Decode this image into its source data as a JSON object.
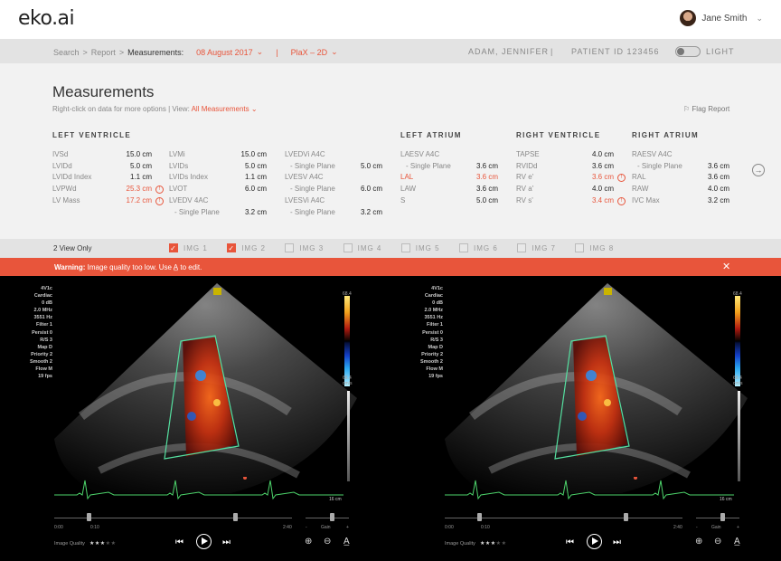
{
  "app": {
    "logo": "eko.ai",
    "user_name": "Jane Smith"
  },
  "nav": {
    "crumb_search": "Search",
    "crumb_report": "Report",
    "crumb_measurements": "Measurements:",
    "date": "08 August 2017",
    "view_mode": "PlaX – 2D",
    "patient_name": "ADAM, JENNIFER",
    "patient_id": "PATIENT ID 123456",
    "theme_label": "LIGHT"
  },
  "measurements": {
    "title": "Measurements",
    "subtitle": "Right-click on data for more options",
    "view_label": "View:",
    "view_value": "All Measurements",
    "flag_report": "Flag Report",
    "left_ventricle": {
      "heading": "LEFT VENTRICLE",
      "col1": [
        {
          "label": "IVSd",
          "value": "15.0 cm"
        },
        {
          "label": "LVIDd",
          "value": "5.0 cm"
        },
        {
          "label": "LVIDd Index",
          "value": "1.1 cm"
        },
        {
          "label": "LVPWd",
          "value": "25.3 cm",
          "alert": true
        },
        {
          "label": "LV Mass",
          "value": "17.2 cm",
          "alert": true
        }
      ],
      "col2": [
        {
          "label": "LVMi",
          "value": "15.0 cm"
        },
        {
          "label": "LVIDs",
          "value": "5.0 cm"
        },
        {
          "label": "LVIDs Index",
          "value": "1.1 cm"
        },
        {
          "label": "LVOT",
          "value": "6.0 cm"
        },
        {
          "label": "LVEDV 4AC",
          "value": ""
        },
        {
          "label": "- Single Plane",
          "value": "3.2 cm"
        }
      ],
      "col3": [
        {
          "label": "LVEDVi A4C",
          "value": ""
        },
        {
          "label": "- Single Plane",
          "value": "5.0 cm"
        },
        {
          "label": "LVESV A4C",
          "value": ""
        },
        {
          "label": "- Single Plane",
          "value": "6.0 cm"
        },
        {
          "label": "LVESVi A4C",
          "value": ""
        },
        {
          "label": "- Single Plane",
          "value": "3.2 cm"
        }
      ]
    },
    "left_atrium": {
      "heading": "LEFT ATRIUM",
      "rows": [
        {
          "label": "LAESV A4C",
          "value": ""
        },
        {
          "label": "- Single Plane",
          "value": "3.6 cm"
        },
        {
          "label": "LAL",
          "value": "3.6 cm",
          "red": true
        },
        {
          "label": "LAW",
          "value": "3.6 cm"
        },
        {
          "label": "S",
          "value": "5.0 cm"
        }
      ]
    },
    "right_ventricle": {
      "heading": "RIGHT VENTRICLE",
      "rows": [
        {
          "label": "TAPSE",
          "value": "4.0 cm"
        },
        {
          "label": "RVIDd",
          "value": "3.6 cm"
        },
        {
          "label": "RV e'",
          "value": "3.6 cm",
          "alert": true
        },
        {
          "label": "RV a'",
          "value": "4.0 cm"
        },
        {
          "label": "RV s'",
          "value": "3.4 cm",
          "alert": true
        }
      ]
    },
    "right_atrium": {
      "heading": "RIGHT ATRIUM",
      "rows": [
        {
          "label": "RAESV A4C",
          "value": ""
        },
        {
          "label": "- Single Plane",
          "value": "3.6 cm"
        },
        {
          "label": "RAL",
          "value": "3.6 cm"
        },
        {
          "label": "RAW",
          "value": "4.0 cm"
        },
        {
          "label": "IVC Max",
          "value": "3.2 cm"
        }
      ]
    }
  },
  "image_bar": {
    "two_view": "2 View Only",
    "images": [
      {
        "label": "IMG 1",
        "checked": true
      },
      {
        "label": "IMG 2",
        "checked": true
      },
      {
        "label": "IMG 3",
        "checked": false
      },
      {
        "label": "IMG 4",
        "checked": false
      },
      {
        "label": "IMG 5",
        "checked": false
      },
      {
        "label": "IMG 6",
        "checked": false
      },
      {
        "label": "IMG 7",
        "checked": false
      },
      {
        "label": "IMG 8",
        "checked": false
      }
    ]
  },
  "warning": {
    "bold": "Warning:",
    "text": "Image quality too low. Use",
    "text_after": "to edit."
  },
  "viewer": {
    "params": [
      "4V1c",
      "Cardiac",
      "0 dB",
      "2.0 MHz",
      "3551 Hz",
      "Filter 1",
      "Persist 0",
      "R/S 3",
      "Map D",
      "Priority 2",
      "Smooth 2",
      "Flow M",
      "19 fps"
    ],
    "scale_top": "68.4",
    "scale_bottom": "68.4",
    "scale_unit": "cm/s",
    "depth": "16 cm",
    "time_start": "0:00",
    "time_marker": "0:10",
    "time_end": "2:40",
    "gain_label": "Gain",
    "gain_minus": "-",
    "gain_plus": "+",
    "quality_label": "Image Quality",
    "quality_stars": 3,
    "quality_max": 5
  }
}
